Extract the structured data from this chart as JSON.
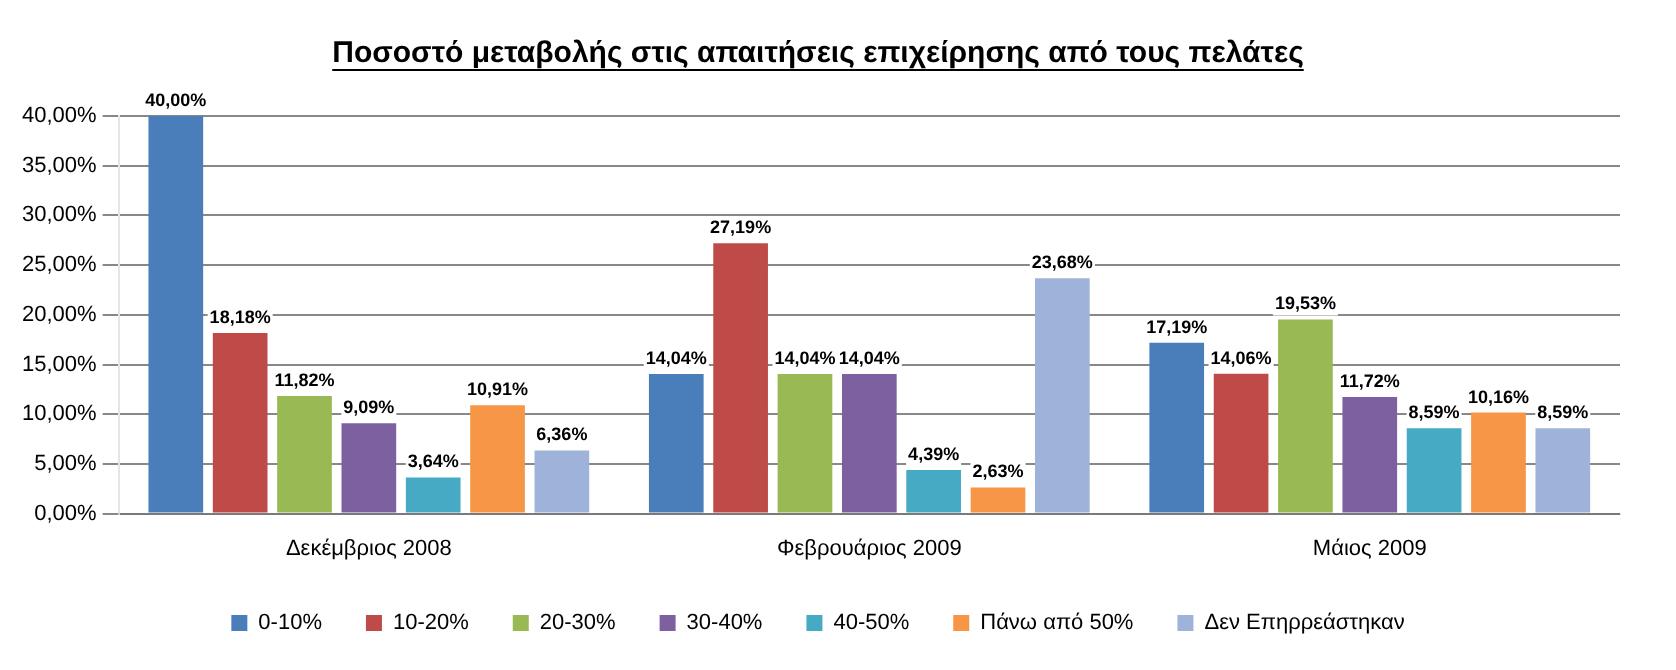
{
  "chart_data": {
    "type": "bar",
    "title": "Ποσοστό μεταβολής στις απαιτήσεις επιχείρησης από τους πελάτες",
    "categories": [
      "Δεκέμβριος 2008",
      "Φεβρουάριος 2009",
      "Μάιος 2009"
    ],
    "series": [
      {
        "name": "0-10%",
        "color": "#4a7ebb",
        "values": [
          40.0,
          14.04,
          17.19
        ],
        "value_labels": [
          "40,00%",
          "14,04%",
          "17,19%"
        ]
      },
      {
        "name": "10-20%",
        "color": "#be4b48",
        "values": [
          18.18,
          27.19,
          14.06
        ],
        "value_labels": [
          "18,18%",
          "27,19%",
          "14,06%"
        ]
      },
      {
        "name": "20-30%",
        "color": "#98b954",
        "values": [
          11.82,
          14.04,
          19.53
        ],
        "value_labels": [
          "11,82%",
          "14,04%",
          "19,53%"
        ]
      },
      {
        "name": "30-40%",
        "color": "#7d60a0",
        "values": [
          9.09,
          14.04,
          11.72
        ],
        "value_labels": [
          "9,09%",
          "14,04%",
          "11,72%"
        ]
      },
      {
        "name": "40-50%",
        "color": "#46aac5",
        "values": [
          3.64,
          4.39,
          8.59
        ],
        "value_labels": [
          "3,64%",
          "4,39%",
          "8,59%"
        ]
      },
      {
        "name": "Πάνω από 50%",
        "color": "#f79646",
        "values": [
          10.91,
          2.63,
          10.16
        ],
        "value_labels": [
          "10,91%",
          "2,63%",
          "10,16%"
        ]
      },
      {
        "name": "Δεν Επηρρεάστηκαν",
        "color": "#9fb3da",
        "values": [
          6.36,
          23.68,
          8.59
        ],
        "value_labels": [
          "6,36%",
          "23,68%",
          "8,59%"
        ]
      }
    ],
    "ylim": [
      0,
      40
    ],
    "yticks": [
      {
        "value": 0,
        "label": "0,00%"
      },
      {
        "value": 5,
        "label": "5,00%"
      },
      {
        "value": 10,
        "label": "10,00%"
      },
      {
        "value": 15,
        "label": "15,00%"
      },
      {
        "value": 20,
        "label": "20,00%"
      },
      {
        "value": 25,
        "label": "25,00%"
      },
      {
        "value": 30,
        "label": "30,00%"
      },
      {
        "value": 35,
        "label": "35,00%"
      },
      {
        "value": 40,
        "label": "40,00%"
      }
    ],
    "grid": "y",
    "legend": "bottom"
  }
}
